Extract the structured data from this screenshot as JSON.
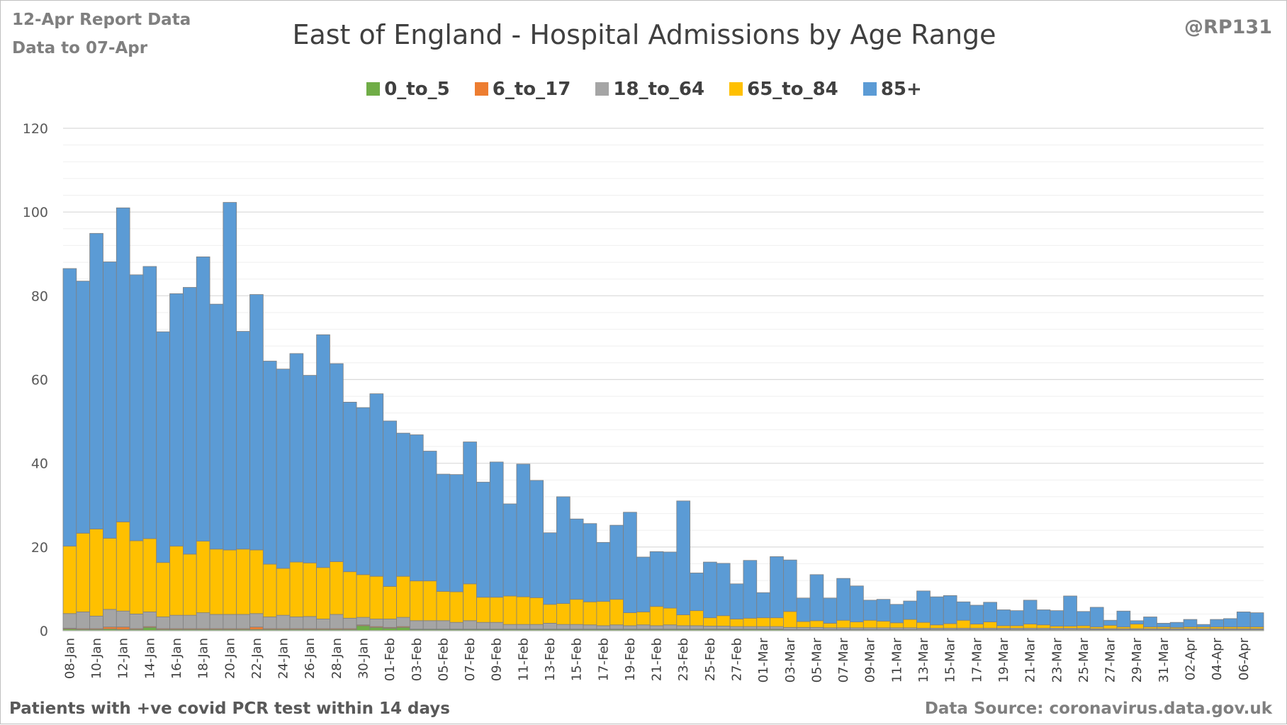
{
  "header": {
    "report_label": "12-Apr Report Data",
    "data_label": "Data to 07-Apr",
    "handle": "@RP131"
  },
  "footer": {
    "note": "Patients with  +ve covid PCR test within 14 days",
    "source": "Data Source: coronavirus.data.gov.uk"
  },
  "chart_data": {
    "type": "bar",
    "stacked": true,
    "title": "East of England - Hospital Admissions by Age Range",
    "xlabel": "",
    "ylabel": "",
    "ylim": [
      0,
      120
    ],
    "yticks": [
      0,
      20,
      40,
      60,
      80,
      100,
      120
    ],
    "grid": true,
    "legend_position": "top",
    "tick_labels": [
      "08-Jan",
      "10-Jan",
      "12-Jan",
      "14-Jan",
      "16-Jan",
      "18-Jan",
      "20-Jan",
      "22-Jan",
      "24-Jan",
      "26-Jan",
      "28-Jan",
      "30-Jan",
      "01-Feb",
      "03-Feb",
      "05-Feb",
      "07-Feb",
      "09-Feb",
      "11-Feb",
      "13-Feb",
      "15-Feb",
      "17-Feb",
      "19-Feb",
      "21-Feb",
      "23-Feb",
      "25-Feb",
      "27-Feb",
      "01-Mar",
      "03-Mar",
      "05-Mar",
      "07-Mar",
      "09-Mar",
      "11-Mar",
      "13-Mar",
      "15-Mar",
      "17-Mar",
      "19-Mar",
      "21-Mar",
      "23-Mar",
      "25-Mar",
      "27-Mar",
      "29-Mar",
      "31-Mar",
      "02-Apr",
      "04-Apr",
      "06-Apr"
    ],
    "categories": [
      "08-Jan",
      "09-Jan",
      "10-Jan",
      "11-Jan",
      "12-Jan",
      "13-Jan",
      "14-Jan",
      "15-Jan",
      "16-Jan",
      "17-Jan",
      "18-Jan",
      "19-Jan",
      "20-Jan",
      "21-Jan",
      "22-Jan",
      "23-Jan",
      "24-Jan",
      "25-Jan",
      "26-Jan",
      "27-Jan",
      "28-Jan",
      "29-Jan",
      "30-Jan",
      "31-Jan",
      "01-Feb",
      "02-Feb",
      "03-Feb",
      "04-Feb",
      "05-Feb",
      "06-Feb",
      "07-Feb",
      "08-Feb",
      "09-Feb",
      "10-Feb",
      "11-Feb",
      "12-Feb",
      "13-Feb",
      "14-Feb",
      "15-Feb",
      "16-Feb",
      "17-Feb",
      "18-Feb",
      "19-Feb",
      "20-Feb",
      "21-Feb",
      "22-Feb",
      "23-Feb",
      "24-Feb",
      "25-Feb",
      "26-Feb",
      "27-Feb",
      "28-Feb",
      "01-Mar",
      "02-Mar",
      "03-Mar",
      "04-Mar",
      "05-Mar",
      "06-Mar",
      "07-Mar",
      "08-Mar",
      "09-Mar",
      "10-Mar",
      "11-Mar",
      "12-Mar",
      "13-Mar",
      "14-Mar",
      "15-Mar",
      "16-Mar",
      "17-Mar",
      "18-Mar",
      "19-Mar",
      "20-Mar",
      "21-Mar",
      "22-Mar",
      "23-Mar",
      "24-Mar",
      "25-Mar",
      "26-Mar",
      "27-Mar",
      "28-Mar",
      "29-Mar",
      "30-Mar",
      "31-Mar",
      "01-Apr",
      "02-Apr",
      "03-Apr",
      "04-Apr",
      "05-Apr",
      "06-Apr",
      "07-Apr"
    ],
    "series": [
      {
        "name": "0_to_5",
        "color": "#70ad47",
        "values": [
          0.4,
          0.3,
          0.3,
          0.4,
          0.3,
          0.3,
          0.8,
          0.3,
          0.3,
          0.3,
          0.3,
          0.3,
          0.3,
          0.3,
          0.3,
          0.3,
          0.3,
          0.3,
          0.3,
          0.3,
          0.3,
          0.3,
          1.2,
          0.8,
          0.6,
          0.8,
          0.3,
          0.3,
          0.3,
          0.3,
          0.3,
          0.3,
          0.3,
          0.3,
          0.3,
          0.3,
          0.3,
          0.3,
          0.3,
          0.3,
          0.3,
          0.3,
          0.3,
          0.3,
          0.3,
          0.3,
          0.3,
          0.3,
          0.3,
          0.3,
          0.3,
          0.3,
          0.3,
          0.3,
          0.2,
          0.2,
          0.2,
          0.2,
          0.2,
          0.2,
          0.2,
          0.2,
          0.2,
          0.2,
          0.2,
          0.2,
          0.2,
          0.2,
          0.2,
          0.2,
          0.2,
          0.2,
          0.2,
          0.2,
          0.2,
          0.2,
          0.2,
          0.2,
          0.2,
          0.2,
          0.2,
          0.2,
          0.2,
          0.2,
          0.2,
          0.2,
          0.2,
          0.2,
          0.2,
          0.2
        ]
      },
      {
        "name": "6_to_17",
        "color": "#ed7d31",
        "values": [
          0.2,
          0.2,
          0.2,
          0.5,
          0.6,
          0.2,
          0.2,
          0.2,
          0.2,
          0.2,
          0.2,
          0.2,
          0.2,
          0.2,
          0.6,
          0.2,
          0.2,
          0.2,
          0.2,
          0.2,
          0.2,
          0.2,
          0.2,
          0.2,
          0.2,
          0.2,
          0.1,
          0.1,
          0.1,
          0.1,
          0.1,
          0.1,
          0.1,
          0.1,
          0.1,
          0.1,
          0.1,
          0.1,
          0.1,
          0.1,
          0.1,
          0.1,
          0.1,
          0.1,
          0.1,
          0.1,
          0.1,
          0.1,
          0.1,
          0.1,
          0.1,
          0.1,
          0.1,
          0.1,
          0.1,
          0.1,
          0.1,
          0.1,
          0.1,
          0.1,
          0.1,
          0.1,
          0.1,
          0.1,
          0.1,
          0.1,
          0.1,
          0.1,
          0.1,
          0.1,
          0.1,
          0.1,
          0.1,
          0.1,
          0.1,
          0.1,
          0.1,
          0.1,
          0.1,
          0.1,
          0.1,
          0.1,
          0.1,
          0.1,
          0.1,
          0.1,
          0.1,
          0.1,
          0.1,
          0.1
        ]
      },
      {
        "name": "18_to_64",
        "color": "#a5a5a5",
        "values": [
          3.5,
          4.0,
          3.0,
          4.2,
          3.8,
          3.5,
          3.5,
          2.8,
          3.2,
          3.2,
          3.8,
          3.4,
          3.4,
          3.4,
          3.2,
          2.8,
          3.2,
          2.8,
          2.9,
          2.3,
          3.4,
          2.5,
          1.8,
          1.8,
          2.0,
          2.2,
          2.0,
          2.0,
          2.0,
          1.6,
          2.0,
          1.6,
          1.6,
          1.1,
          1.1,
          1.1,
          1.4,
          1.1,
          1.1,
          1.0,
          0.8,
          1.0,
          0.8,
          1.0,
          0.8,
          1.0,
          0.8,
          0.8,
          0.7,
          0.7,
          0.6,
          0.6,
          0.6,
          0.6,
          0.5,
          0.5,
          0.5,
          0.4,
          0.4,
          0.4,
          0.4,
          0.4,
          0.4,
          0.4,
          0.3,
          0.3,
          0.3,
          0.3,
          0.3,
          0.3,
          0.3,
          0.3,
          0.3,
          0.3,
          0.3,
          0.3,
          0.3,
          0.2,
          0.2,
          0.2,
          0.2,
          0.2,
          0.2,
          0.2,
          0.2,
          0.2,
          0.2,
          0.2,
          0.2,
          0.2
        ]
      },
      {
        "name": "65_to_84",
        "color": "#ffc000",
        "values": [
          16.1,
          18.8,
          20.8,
          17.0,
          21.3,
          17.5,
          17.5,
          13.0,
          16.5,
          14.6,
          17.1,
          15.6,
          15.4,
          15.6,
          15.2,
          12.6,
          11.2,
          13.1,
          12.8,
          12.3,
          12.6,
          11.1,
          10.2,
          10.2,
          7.8,
          9.8,
          9.5,
          9.5,
          7.0,
          7.3,
          8.8,
          6.0,
          6.0,
          6.8,
          6.6,
          6.4,
          4.5,
          5.0,
          6.0,
          5.5,
          5.8,
          6.1,
          3.1,
          3.1,
          4.6,
          4.0,
          2.6,
          3.6,
          2.0,
          2.5,
          1.8,
          2.0,
          2.1,
          2.1,
          3.8,
          1.4,
          1.6,
          1.1,
          1.8,
          1.4,
          1.8,
          1.6,
          1.2,
          2.0,
          1.4,
          0.8,
          1.1,
          1.9,
          1.0,
          1.5,
          0.6,
          0.6,
          1.0,
          0.8,
          0.5,
          0.5,
          0.6,
          0.4,
          0.8,
          0.4,
          1.1,
          0.4,
          0.4,
          0.3,
          0.4,
          0.4,
          0.4,
          0.4,
          0.4,
          0.4
        ]
      },
      {
        "name": "85+",
        "color": "#5b9bd5",
        "values": [
          66.3,
          60.2,
          70.6,
          66.0,
          75.0,
          63.5,
          65.0,
          55.1,
          60.3,
          63.7,
          67.9,
          58.5,
          83.0,
          52.0,
          61.0,
          48.5,
          47.6,
          49.8,
          44.8,
          55.6,
          47.3,
          40.5,
          39.9,
          43.6,
          39.5,
          34.2,
          34.9,
          31.0,
          28.0,
          28.0,
          33.9,
          27.5,
          32.3,
          22.0,
          31.7,
          28.0,
          17.1,
          25.5,
          19.2,
          18.7,
          14.1,
          17.7,
          24.0,
          13.1,
          13.1,
          13.4,
          27.2,
          9.0,
          13.3,
          12.5,
          8.4,
          13.8,
          6.0,
          14.6,
          12.3,
          5.6,
          11.0,
          6.0,
          10.0,
          8.6,
          4.8,
          5.2,
          4.4,
          4.4,
          7.5,
          6.7,
          6.7,
          4.4,
          4.5,
          4.7,
          3.8,
          3.6,
          5.7,
          3.6,
          3.7,
          7.2,
          3.4,
          4.7,
          1.2,
          3.8,
          0.8,
          2.4,
          0.9,
          1.2,
          1.8,
          0.6,
          1.8,
          2.0,
          3.6,
          3.4
        ]
      }
    ]
  }
}
